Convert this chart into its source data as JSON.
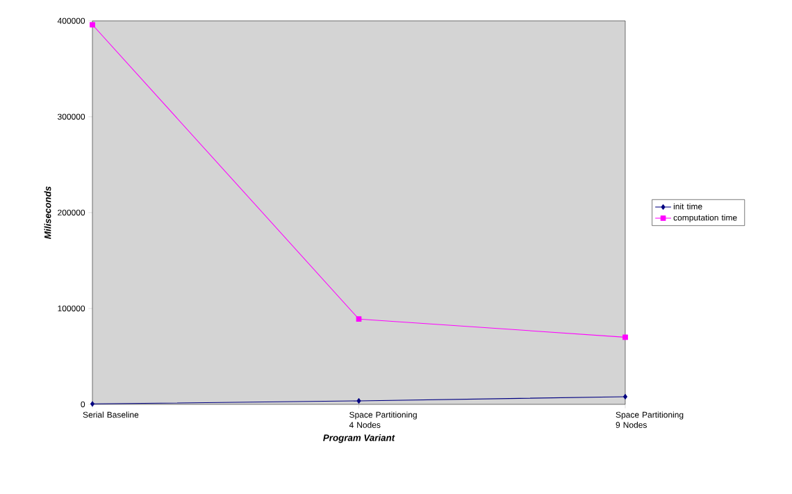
{
  "chart_data": {
    "type": "line",
    "xlabel": "Program Variant",
    "ylabel": "Miliseconds",
    "categories": [
      "Serial Baseline",
      "Space Partitioning 4 Nodes",
      "Space Partitioning 9 Nodes"
    ],
    "series": [
      {
        "name": "init time",
        "color": "#000080",
        "marker": "diamond",
        "values": [
          500,
          3600,
          8000
        ]
      },
      {
        "name": "computation time",
        "color": "#ff00ff",
        "marker": "square",
        "values": [
          396000,
          89000,
          70000
        ]
      }
    ],
    "ylim": [
      0,
      400000
    ],
    "yticks": [
      0,
      100000,
      200000,
      300000,
      400000
    ],
    "legend": "right"
  }
}
